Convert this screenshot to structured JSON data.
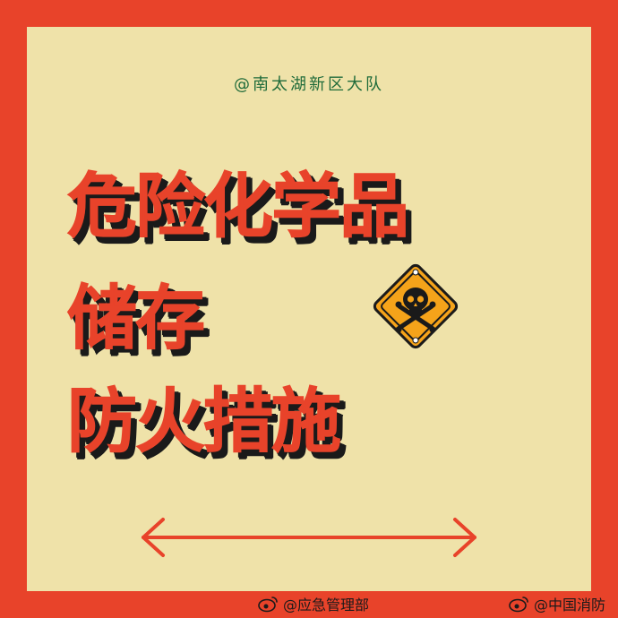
{
  "credit": "@南太湖新区大队",
  "title": {
    "line1": "危险化学品",
    "line2": "储存",
    "line3": "防火措施"
  },
  "footer": {
    "left": "@应急管理部",
    "right": "@中国消防"
  },
  "colors": {
    "border": "#e8432a",
    "panel": "#efe2a9",
    "title": "#e8432a",
    "shadow": "#1a1a1a",
    "credit": "#1f6b3a",
    "hazard": "#f5a31a"
  },
  "icons": [
    "hazard-skull-icon",
    "double-arrow-icon",
    "weibo-icon"
  ]
}
